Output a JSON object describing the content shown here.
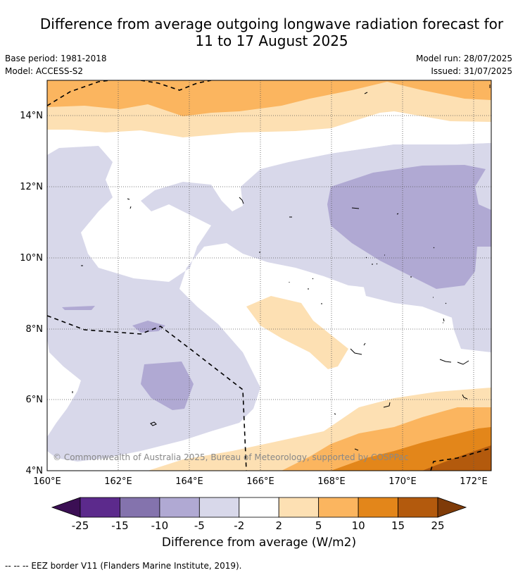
{
  "title_line1": "Difference from average outgoing longwave radiation forecast for",
  "title_line2": "11 to 17 August 2025",
  "base_period": "Base period: 1981-2018",
  "model": "Model: ACCESS-S2",
  "model_run": "Model run: 28/07/2025",
  "issued": "Issued: 31/07/2025",
  "copyright": "© Commonwealth of Australia 2025, Bureau of Meteorology, supported by COSPPac",
  "x_ticks": [
    "160°E",
    "162°E",
    "164°E",
    "166°E",
    "168°E",
    "170°E",
    "172°E"
  ],
  "y_ticks": [
    "14°N",
    "12°N",
    "10°N",
    "8°N",
    "6°N",
    "4°N"
  ],
  "colorbar": {
    "ticks": [
      "-25",
      "-15",
      "-10",
      "-5",
      "-2",
      "2",
      "5",
      "10",
      "15",
      "25"
    ],
    "colors": [
      "#3b0f54",
      "#5c2a8c",
      "#8473ad",
      "#b0a9d3",
      "#d8d8ea",
      "#ffffff",
      "#fde0b3",
      "#fbb55f",
      "#e3861a",
      "#b35a0d",
      "#7f3b08"
    ],
    "label": "Difference from average (W/m2)"
  },
  "footnote": "--  --  -- EEZ border V11 (Flanders Marine Institute, 2019)."
}
